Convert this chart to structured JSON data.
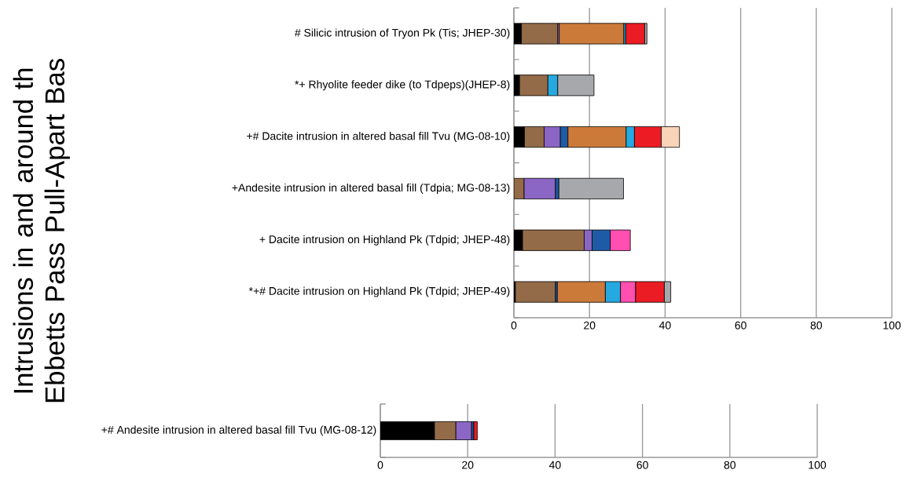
{
  "chart_data": [
    {
      "type": "bar",
      "orientation": "horizontal",
      "stacked": true,
      "grid": "x",
      "ylabel": "Intrusions in and around th Ebbetts Pass Pull-Apart Bas",
      "categories": [
        "# Silicic intrusion of Tryon Pk (Tis; JHEP-30)",
        "*+ Rhyolite feeder dike (to Tdpeps)(JHEP-8)",
        "+# Dacite intrusion in altered basal fill Tvu (MG-08-10)",
        "+Andesite intrusion in altered basal fill  (Tdpia; MG-08-13)",
        "+ Dacite intrusion on Highland Pk (Tdpid; JHEP-48)",
        "*+# Dacite intrusion on Highland Pk (Tdpid; JHEP-49)"
      ],
      "xlim": [
        0,
        100
      ],
      "xticks": [
        0,
        20,
        40,
        60,
        80,
        100
      ],
      "series": [
        {
          "color": "#000000",
          "values": [
            2.0,
            1.5,
            2.8,
            null,
            2.3,
            0.4
          ]
        },
        {
          "color": "#946b48",
          "values": [
            9.6,
            7.5,
            5.2,
            2.7,
            16.3,
            10.6
          ]
        },
        {
          "color": "#8b66c4",
          "values": [
            0.4,
            null,
            4.3,
            8.3,
            2.1,
            null
          ]
        },
        {
          "color": "#1f5aa6",
          "values": [
            null,
            null,
            2.0,
            0.9,
            4.8,
            0.5
          ]
        },
        {
          "color": "#cc7a3a",
          "values": [
            17.1,
            null,
            15.4,
            null,
            null,
            12.7
          ]
        },
        {
          "color": "#25a9e0",
          "values": [
            0.5,
            2.6,
            2.2,
            null,
            null,
            4.0
          ]
        },
        {
          "color": "#ff4fb0",
          "values": [
            null,
            null,
            null,
            null,
            5.3,
            4.0
          ]
        },
        {
          "color": "#ec1c24",
          "values": [
            5.0,
            null,
            7.1,
            null,
            null,
            7.6
          ]
        },
        {
          "color": "#a7a8ab",
          "values": [
            0.6,
            9.6,
            null,
            17.1,
            null,
            1.7
          ]
        },
        {
          "color": "#f8d3b8",
          "values": [
            null,
            null,
            4.8,
            null,
            null,
            null
          ]
        }
      ]
    },
    {
      "type": "bar",
      "orientation": "horizontal",
      "stacked": true,
      "grid": "x",
      "categories": [
        "+# Andesite intrusion in altered basal fill Tvu (MG-08-12)"
      ],
      "xlim": [
        0,
        100
      ],
      "xticks": [
        0,
        20,
        40,
        60,
        80,
        100
      ],
      "series": [
        {
          "color": "#000000",
          "values": [
            12.4
          ]
        },
        {
          "color": "#946b48",
          "values": [
            4.9
          ]
        },
        {
          "color": "#8b66c4",
          "values": [
            3.6
          ]
        },
        {
          "color": "#1f5aa6",
          "values": [
            0.5
          ]
        },
        {
          "color": "#ec1c24",
          "values": [
            0.8
          ]
        }
      ]
    }
  ]
}
